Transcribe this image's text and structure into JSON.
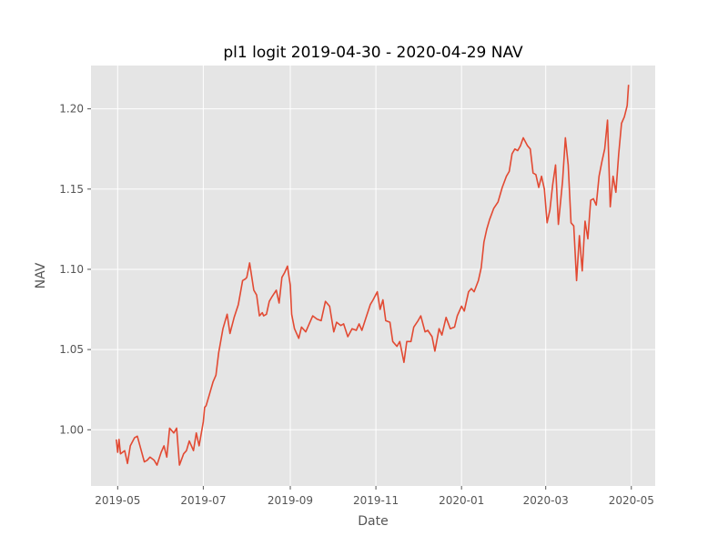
{
  "chart_data": {
    "type": "line",
    "title": "pl1 logit 2019-04-30 - 2020-04-29 NAV",
    "xlabel": "Date",
    "ylabel": "NAV",
    "x_ticks": [
      "2019-05",
      "2019-07",
      "2019-09",
      "2019-11",
      "2020-01",
      "2020-03",
      "2020-05"
    ],
    "y_ticks": [
      "1.00",
      "1.05",
      "1.10",
      "1.15",
      "1.20"
    ],
    "xlim": [
      "2019-04-12",
      "2020-05-18"
    ],
    "ylim": [
      0.965,
      1.227
    ],
    "grid": true,
    "style": {
      "background": "#e5e5e5",
      "grid_color": "#ffffff",
      "line_color": "#e24a33"
    },
    "series": [
      {
        "x": [
          "2019-04-30",
          "2019-05-01",
          "2019-05-02",
          "2019-05-03",
          "2019-05-06",
          "2019-05-08",
          "2019-05-10",
          "2019-05-13",
          "2019-05-15",
          "2019-05-20",
          "2019-05-22",
          "2019-05-24",
          "2019-05-27",
          "2019-05-29",
          "2019-06-01",
          "2019-06-03",
          "2019-06-05",
          "2019-06-07",
          "2019-06-10",
          "2019-06-12",
          "2019-06-14",
          "2019-06-17",
          "2019-06-19",
          "2019-06-21",
          "2019-06-24",
          "2019-06-26",
          "2019-06-28",
          "2019-07-01",
          "2019-07-02",
          "2019-07-03",
          "2019-07-05",
          "2019-07-08",
          "2019-07-10",
          "2019-07-12",
          "2019-07-15",
          "2019-07-18",
          "2019-07-20",
          "2019-07-23",
          "2019-07-26",
          "2019-07-29",
          "2019-07-31",
          "2019-08-01",
          "2019-08-03",
          "2019-08-06",
          "2019-08-08",
          "2019-08-10",
          "2019-08-12",
          "2019-08-13",
          "2019-08-15",
          "2019-08-17",
          "2019-08-19",
          "2019-08-22",
          "2019-08-24",
          "2019-08-26",
          "2019-08-28",
          "2019-08-30",
          "2019-09-01",
          "2019-09-02",
          "2019-09-04",
          "2019-09-07",
          "2019-09-09",
          "2019-09-12",
          "2019-09-15",
          "2019-09-17",
          "2019-09-20",
          "2019-09-23",
          "2019-09-26",
          "2019-09-29",
          "2019-10-02",
          "2019-10-04",
          "2019-10-07",
          "2019-10-09",
          "2019-10-12",
          "2019-10-15",
          "2019-10-18",
          "2019-10-20",
          "2019-10-22",
          "2019-10-25",
          "2019-10-28",
          "2019-10-30",
          "2019-11-02",
          "2019-11-04",
          "2019-11-06",
          "2019-11-08",
          "2019-11-11",
          "2019-11-13",
          "2019-11-16",
          "2019-11-18",
          "2019-11-21",
          "2019-11-23",
          "2019-11-26",
          "2019-11-28",
          "2019-12-01",
          "2019-12-03",
          "2019-12-06",
          "2019-12-08",
          "2019-12-11",
          "2019-12-13",
          "2019-12-16",
          "2019-12-18",
          "2019-12-21",
          "2019-12-24",
          "2019-12-27",
          "2019-12-29",
          "2020-01-01",
          "2020-01-03",
          "2020-01-06",
          "2020-01-08",
          "2020-01-10",
          "2020-01-13",
          "2020-01-15",
          "2020-01-17",
          "2020-01-19",
          "2020-01-21",
          "2020-01-24",
          "2020-01-27",
          "2020-01-30",
          "2020-02-02",
          "2020-02-04",
          "2020-02-06",
          "2020-02-08",
          "2020-02-10",
          "2020-02-12",
          "2020-02-14",
          "2020-02-17",
          "2020-02-19",
          "2020-02-21",
          "2020-02-23",
          "2020-02-25",
          "2020-02-27",
          "2020-02-29",
          "2020-03-02",
          "2020-03-04",
          "2020-03-06",
          "2020-03-08",
          "2020-03-10",
          "2020-03-13",
          "2020-03-15",
          "2020-03-17",
          "2020-03-19",
          "2020-03-21",
          "2020-03-23",
          "2020-03-25",
          "2020-03-27",
          "2020-03-29",
          "2020-03-31",
          "2020-04-02",
          "2020-04-04",
          "2020-04-06",
          "2020-04-08",
          "2020-04-10",
          "2020-04-12",
          "2020-04-14",
          "2020-04-16",
          "2020-04-18",
          "2020-04-20",
          "2020-04-22",
          "2020-04-24",
          "2020-04-26",
          "2020-04-28",
          "2020-04-29"
        ],
        "y": [
          0.994,
          0.986,
          0.994,
          0.985,
          0.987,
          0.979,
          0.99,
          0.995,
          0.996,
          0.98,
          0.981,
          0.983,
          0.981,
          0.978,
          0.986,
          0.99,
          0.983,
          1.001,
          0.998,
          1.001,
          0.978,
          0.985,
          0.987,
          0.993,
          0.987,
          0.998,
          0.99,
          1.005,
          1.014,
          1.015,
          1.021,
          1.03,
          1.034,
          1.048,
          1.063,
          1.072,
          1.06,
          1.07,
          1.078,
          1.093,
          1.094,
          1.095,
          1.104,
          1.087,
          1.084,
          1.071,
          1.073,
          1.071,
          1.072,
          1.08,
          1.083,
          1.087,
          1.079,
          1.095,
          1.098,
          1.102,
          1.09,
          1.072,
          1.063,
          1.057,
          1.064,
          1.061,
          1.067,
          1.071,
          1.069,
          1.068,
          1.08,
          1.077,
          1.061,
          1.067,
          1.065,
          1.066,
          1.058,
          1.063,
          1.062,
          1.066,
          1.062,
          1.07,
          1.078,
          1.081,
          1.086,
          1.075,
          1.081,
          1.068,
          1.067,
          1.055,
          1.052,
          1.055,
          1.042,
          1.055,
          1.055,
          1.064,
          1.068,
          1.071,
          1.061,
          1.062,
          1.058,
          1.049,
          1.063,
          1.059,
          1.07,
          1.063,
          1.064,
          1.071,
          1.077,
          1.074,
          1.086,
          1.088,
          1.086,
          1.093,
          1.101,
          1.117,
          1.125,
          1.131,
          1.138,
          1.142,
          1.151,
          1.158,
          1.161,
          1.172,
          1.175,
          1.174,
          1.177,
          1.182,
          1.177,
          1.175,
          1.16,
          1.159,
          1.151,
          1.158,
          1.15,
          1.129,
          1.137,
          1.153,
          1.165,
          1.128,
          1.155,
          1.182,
          1.165,
          1.129,
          1.127,
          1.093,
          1.121,
          1.099,
          1.13,
          1.119,
          1.143,
          1.144,
          1.14,
          1.158,
          1.167,
          1.175,
          1.193,
          1.139,
          1.158,
          1.148,
          1.172,
          1.191,
          1.195,
          1.202,
          1.215
        ]
      }
    ]
  }
}
